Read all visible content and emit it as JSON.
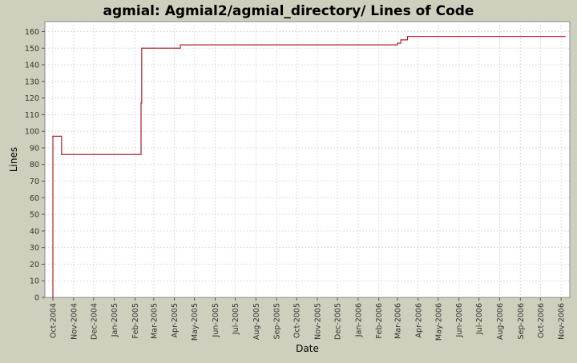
{
  "chart_data": {
    "type": "line",
    "title": "agmial: Agmial2/agmial_directory/ Lines of Code",
    "xlabel": "Date",
    "ylabel": "Lines",
    "ylim": [
      0,
      166
    ],
    "yticks": [
      0,
      10,
      20,
      30,
      40,
      50,
      60,
      70,
      80,
      90,
      100,
      110,
      120,
      130,
      140,
      150,
      160
    ],
    "xlim": [
      "2004-09-19",
      "2006-11-14"
    ],
    "xticks": [
      {
        "date": "2004-10-01",
        "label": "Oct-2004"
      },
      {
        "date": "2004-11-01",
        "label": "Nov-2004"
      },
      {
        "date": "2004-12-01",
        "label": "Dec-2004"
      },
      {
        "date": "2005-01-01",
        "label": "Jan-2005"
      },
      {
        "date": "2005-02-01",
        "label": "Feb-2005"
      },
      {
        "date": "2005-03-01",
        "label": "Mar-2005"
      },
      {
        "date": "2005-04-01",
        "label": "Apr-2005"
      },
      {
        "date": "2005-05-01",
        "label": "May-2005"
      },
      {
        "date": "2005-06-01",
        "label": "Jun-2005"
      },
      {
        "date": "2005-07-01",
        "label": "Jul-2005"
      },
      {
        "date": "2005-08-01",
        "label": "Aug-2005"
      },
      {
        "date": "2005-09-01",
        "label": "Sep-2005"
      },
      {
        "date": "2005-10-01",
        "label": "Oct-2005"
      },
      {
        "date": "2005-11-01",
        "label": "Nov-2005"
      },
      {
        "date": "2005-12-01",
        "label": "Dec-2005"
      },
      {
        "date": "2006-01-01",
        "label": "Jan-2006"
      },
      {
        "date": "2006-02-01",
        "label": "Feb-2006"
      },
      {
        "date": "2006-03-01",
        "label": "Mar-2006"
      },
      {
        "date": "2006-04-01",
        "label": "Apr-2006"
      },
      {
        "date": "2006-05-01",
        "label": "May-2006"
      },
      {
        "date": "2006-06-01",
        "label": "Jun-2006"
      },
      {
        "date": "2006-07-01",
        "label": "Jul-2006"
      },
      {
        "date": "2006-08-01",
        "label": "Aug-2006"
      },
      {
        "date": "2006-09-01",
        "label": "Sep-2006"
      },
      {
        "date": "2006-10-01",
        "label": "Oct-2006"
      },
      {
        "date": "2006-11-01",
        "label": "Nov-2006"
      }
    ],
    "grid": true,
    "step": true,
    "series": [
      {
        "color": "#b0202a",
        "points": [
          {
            "x": "2004-10-01",
            "y": 0
          },
          {
            "x": "2004-10-01",
            "y": 97
          },
          {
            "x": "2004-10-14",
            "y": 86
          },
          {
            "x": "2005-02-10",
            "y": 117
          },
          {
            "x": "2005-02-11",
            "y": 150
          },
          {
            "x": "2005-04-10",
            "y": 152
          },
          {
            "x": "2006-03-01",
            "y": 153
          },
          {
            "x": "2006-03-06",
            "y": 155
          },
          {
            "x": "2006-03-16",
            "y": 157
          },
          {
            "x": "2006-11-07",
            "y": 157
          }
        ]
      }
    ]
  }
}
